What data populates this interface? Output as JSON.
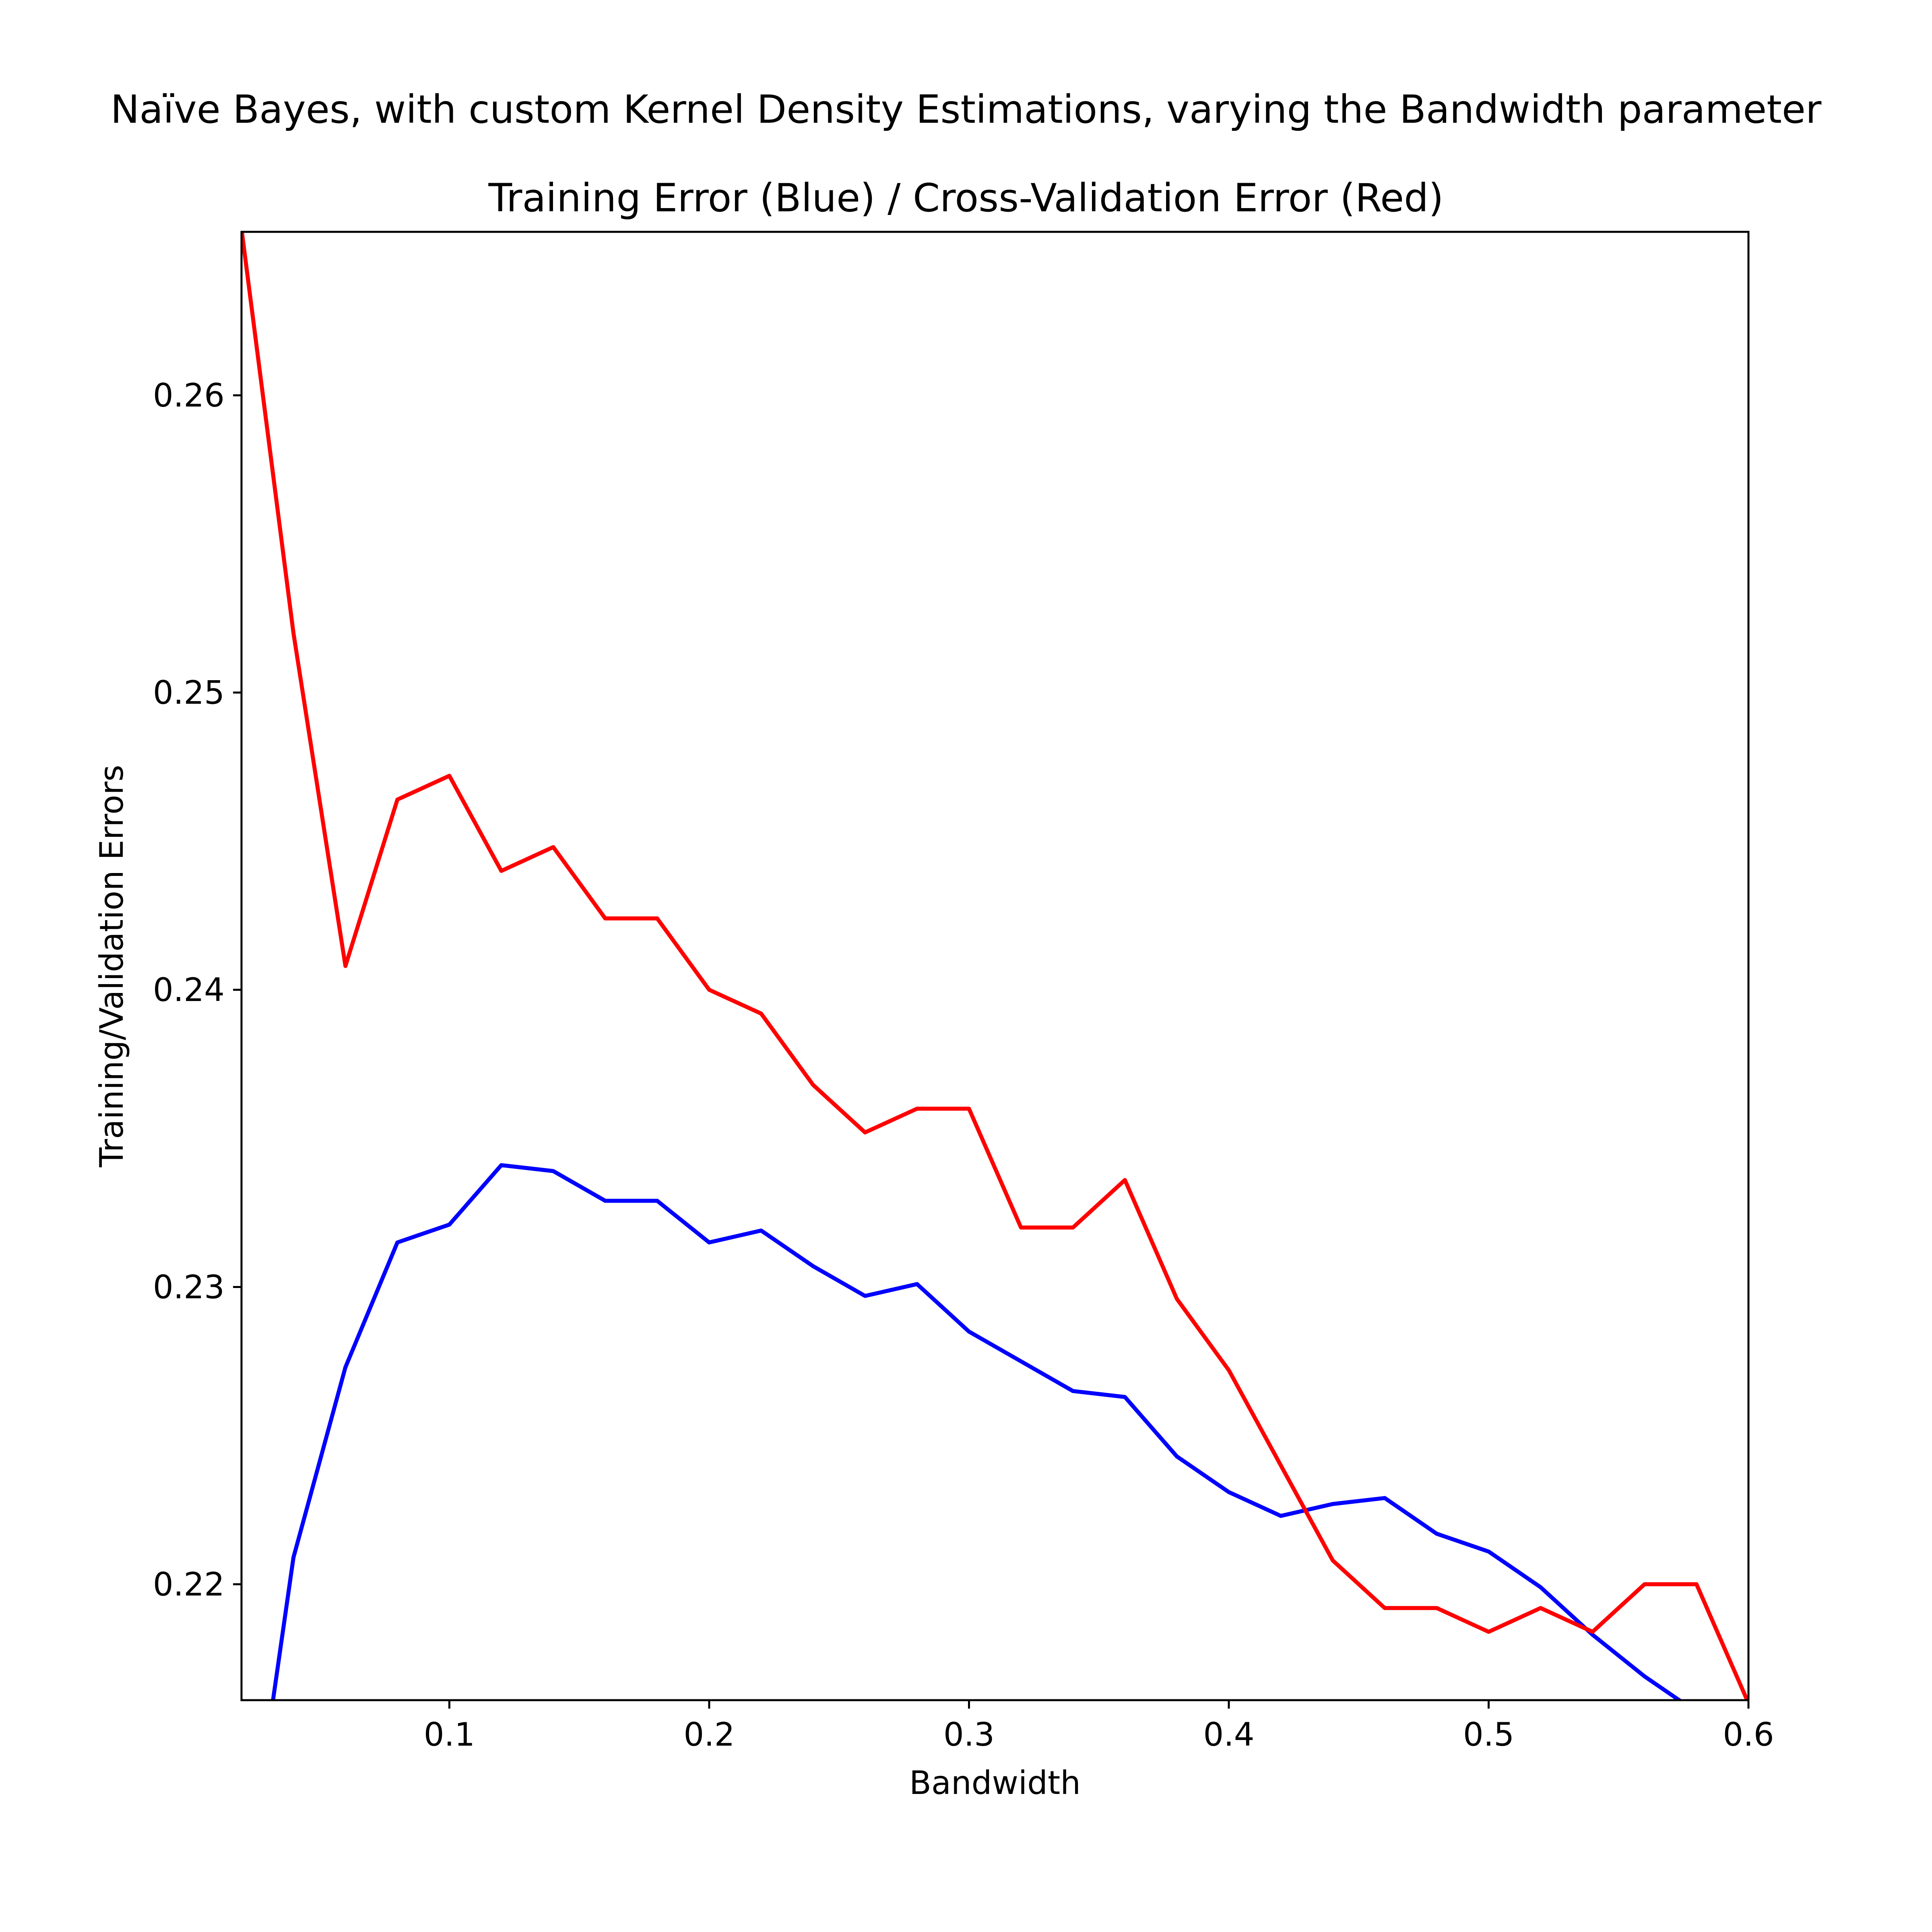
{
  "chart_data": {
    "type": "line",
    "suptitle": "Naïve Bayes, with custom Kernel Density Estimations, varying the Bandwidth parameter",
    "title": "Training Error (Blue) / Cross-Validation Error (Red)",
    "xlabel": "Bandwidth",
    "ylabel": "Training/Validation Errors",
    "xlim": [
      0.02,
      0.6
    ],
    "ylim": [
      0.2161,
      0.2655
    ],
    "xticks": [
      0.1,
      0.2,
      0.3,
      0.4,
      0.5,
      0.6
    ],
    "xtick_labels": [
      "0.1",
      "0.2",
      "0.3",
      "0.4",
      "0.5",
      "0.6"
    ],
    "yticks": [
      0.22,
      0.23,
      0.24,
      0.25,
      0.26
    ],
    "ytick_labels": [
      "0.22",
      "0.23",
      "0.24",
      "0.25",
      "0.26"
    ],
    "x": [
      0.02,
      0.04,
      0.06,
      0.08,
      0.1,
      0.12,
      0.14,
      0.16,
      0.18,
      0.2,
      0.22,
      0.24,
      0.26,
      0.28,
      0.3,
      0.32,
      0.34,
      0.36,
      0.38,
      0.4,
      0.42,
      0.44,
      0.46,
      0.48,
      0.5,
      0.52,
      0.54,
      0.56,
      0.58,
      0.6
    ],
    "series": [
      {
        "name": "Training Error",
        "color": "#0000ff",
        "values": [
          0.2087,
          0.2209,
          0.2273,
          0.2315,
          0.2321,
          0.2341,
          0.2339,
          0.2329,
          0.2329,
          0.2315,
          0.2319,
          0.2307,
          0.2297,
          0.2301,
          0.2285,
          0.2275,
          0.2265,
          0.2263,
          0.2243,
          0.2231,
          0.2223,
          0.2227,
          0.2229,
          0.2217,
          0.2211,
          0.2199,
          0.2183,
          0.2169,
          0.2157,
          0.2143
        ]
      },
      {
        "name": "Cross-Validation Error",
        "color": "#ff0000",
        "values": [
          0.2656,
          0.252,
          0.2408,
          0.2464,
          0.2472,
          0.244,
          0.2448,
          0.2424,
          0.2424,
          0.24,
          0.2392,
          0.2368,
          0.2352,
          0.236,
          0.236,
          0.232,
          0.232,
          0.2336,
          0.2296,
          0.2272,
          0.224,
          0.2208,
          0.2192,
          0.2192,
          0.2184,
          0.2192,
          0.2184,
          0.22,
          0.22,
          0.216
        ]
      }
    ]
  }
}
